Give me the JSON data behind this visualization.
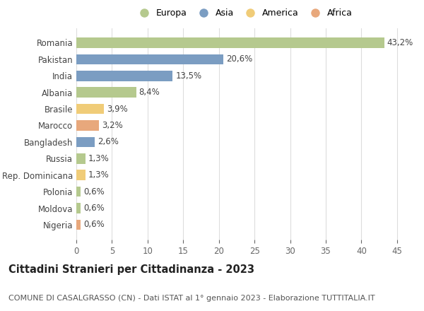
{
  "countries": [
    "Romania",
    "Pakistan",
    "India",
    "Albania",
    "Brasile",
    "Marocco",
    "Bangladesh",
    "Russia",
    "Rep. Dominicana",
    "Polonia",
    "Moldova",
    "Nigeria"
  ],
  "values": [
    43.2,
    20.6,
    13.5,
    8.4,
    3.9,
    3.2,
    2.6,
    1.3,
    1.3,
    0.6,
    0.6,
    0.6
  ],
  "labels": [
    "43,2%",
    "20,6%",
    "13,5%",
    "8,4%",
    "3,9%",
    "3,2%",
    "2,6%",
    "1,3%",
    "1,3%",
    "0,6%",
    "0,6%",
    "0,6%"
  ],
  "continents": [
    "Europa",
    "Asia",
    "Asia",
    "Europa",
    "America",
    "Africa",
    "Asia",
    "Europa",
    "America",
    "Europa",
    "Europa",
    "Africa"
  ],
  "continent_colors": {
    "Europa": "#b5c98e",
    "Asia": "#7b9dc2",
    "America": "#f0cc78",
    "Africa": "#e8a87c"
  },
  "legend_order": [
    "Europa",
    "Asia",
    "America",
    "Africa"
  ],
  "title": "Cittadini Stranieri per Cittadinanza - 2023",
  "subtitle": "COMUNE DI CASALGRASSO (CN) - Dati ISTAT al 1° gennaio 2023 - Elaborazione TUTTITALIA.IT",
  "xlim": [
    0,
    47
  ],
  "xticks": [
    0,
    5,
    10,
    15,
    20,
    25,
    30,
    35,
    40,
    45
  ],
  "background_color": "#ffffff",
  "grid_color": "#dddddd",
  "bar_height": 0.62,
  "title_fontsize": 10.5,
  "subtitle_fontsize": 8,
  "tick_fontsize": 8.5,
  "label_fontsize": 8.5,
  "legend_fontsize": 9
}
